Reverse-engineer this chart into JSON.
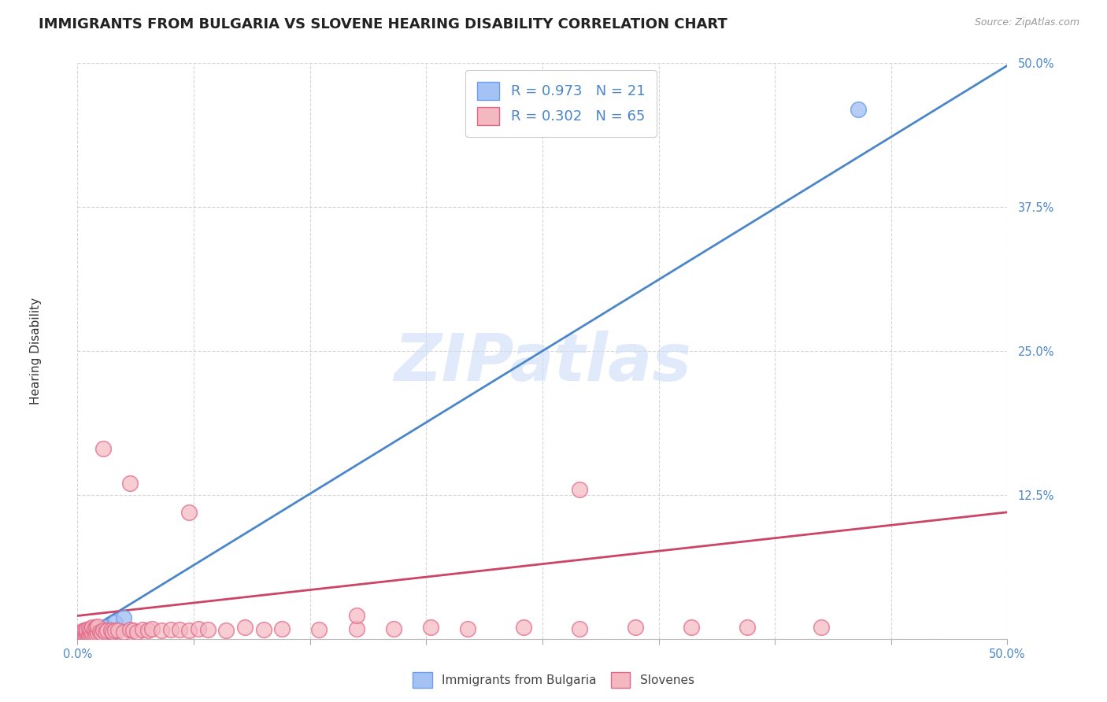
{
  "title": "IMMIGRANTS FROM BULGARIA VS SLOVENE HEARING DISABILITY CORRELATION CHART",
  "source_text": "Source: ZipAtlas.com",
  "ylabel": "Hearing Disability",
  "watermark": "ZIPatlas",
  "xlim": [
    0.0,
    0.5
  ],
  "ylim": [
    0.0,
    0.5
  ],
  "xticks": [
    0.0,
    0.0625,
    0.125,
    0.1875,
    0.25,
    0.3125,
    0.375,
    0.4375,
    0.5
  ],
  "yticks": [
    0.0,
    0.125,
    0.25,
    0.375,
    0.5
  ],
  "ytick_labels": [
    "",
    "12.5%",
    "25.0%",
    "37.5%",
    "50.0%"
  ],
  "xtick_labels": [
    "0.0%",
    "",
    "",
    "",
    "",
    "",
    "",
    "",
    "50.0%"
  ],
  "blue_R": 0.973,
  "blue_N": 21,
  "pink_R": 0.302,
  "pink_N": 65,
  "blue_color": "#a4c2f4",
  "pink_color": "#f4b8c1",
  "blue_edge_color": "#6d9eeb",
  "pink_edge_color": "#e06688",
  "blue_line_color": "#4a86c8",
  "pink_line_color": "#cc4466",
  "bg_color": "#ffffff",
  "grid_color": "#cccccc",
  "blue_scatter_x": [
    0.001,
    0.002,
    0.002,
    0.003,
    0.003,
    0.004,
    0.004,
    0.005,
    0.006,
    0.007,
    0.007,
    0.008,
    0.009,
    0.01,
    0.011,
    0.012,
    0.013,
    0.015,
    0.02,
    0.025,
    0.42
  ],
  "blue_scatter_y": [
    0.003,
    0.003,
    0.004,
    0.003,
    0.004,
    0.004,
    0.005,
    0.004,
    0.005,
    0.005,
    0.006,
    0.006,
    0.006,
    0.007,
    0.007,
    0.008,
    0.009,
    0.01,
    0.014,
    0.018,
    0.46
  ],
  "pink_scatter_x": [
    0.001,
    0.001,
    0.002,
    0.002,
    0.003,
    0.003,
    0.004,
    0.004,
    0.005,
    0.005,
    0.005,
    0.006,
    0.006,
    0.007,
    0.007,
    0.008,
    0.008,
    0.009,
    0.009,
    0.01,
    0.01,
    0.011,
    0.011,
    0.012,
    0.013,
    0.014,
    0.015,
    0.016,
    0.018,
    0.019,
    0.02,
    0.022,
    0.025,
    0.028,
    0.03,
    0.032,
    0.035,
    0.038,
    0.04,
    0.045,
    0.05,
    0.055,
    0.06,
    0.065,
    0.07,
    0.08,
    0.09,
    0.1,
    0.11,
    0.13,
    0.15,
    0.17,
    0.19,
    0.21,
    0.24,
    0.27,
    0.3,
    0.33,
    0.36,
    0.4,
    0.014,
    0.028,
    0.06,
    0.27,
    0.15
  ],
  "pink_scatter_y": [
    0.003,
    0.004,
    0.005,
    0.006,
    0.004,
    0.007,
    0.003,
    0.007,
    0.004,
    0.006,
    0.008,
    0.003,
    0.009,
    0.004,
    0.008,
    0.004,
    0.01,
    0.003,
    0.009,
    0.004,
    0.01,
    0.005,
    0.011,
    0.006,
    0.005,
    0.007,
    0.006,
    0.007,
    0.007,
    0.006,
    0.007,
    0.007,
    0.006,
    0.008,
    0.007,
    0.006,
    0.008,
    0.007,
    0.009,
    0.007,
    0.008,
    0.008,
    0.007,
    0.009,
    0.008,
    0.007,
    0.01,
    0.008,
    0.009,
    0.008,
    0.009,
    0.009,
    0.01,
    0.009,
    0.01,
    0.009,
    0.01,
    0.01,
    0.01,
    0.01,
    0.165,
    0.135,
    0.11,
    0.13,
    0.02
  ],
  "blue_trend_x": [
    0.0,
    0.5
  ],
  "blue_trend_y": [
    0.002,
    0.498
  ],
  "pink_trend_x": [
    0.0,
    0.5
  ],
  "pink_trend_y": [
    0.02,
    0.11
  ],
  "title_fontsize": 13,
  "axis_label_fontsize": 11,
  "tick_fontsize": 10.5,
  "tick_color": "#4a86c8",
  "legend_fontsize": 13,
  "watermark_fontsize": 60,
  "watermark_color": "#ccddf7",
  "watermark_alpha": 0.6
}
